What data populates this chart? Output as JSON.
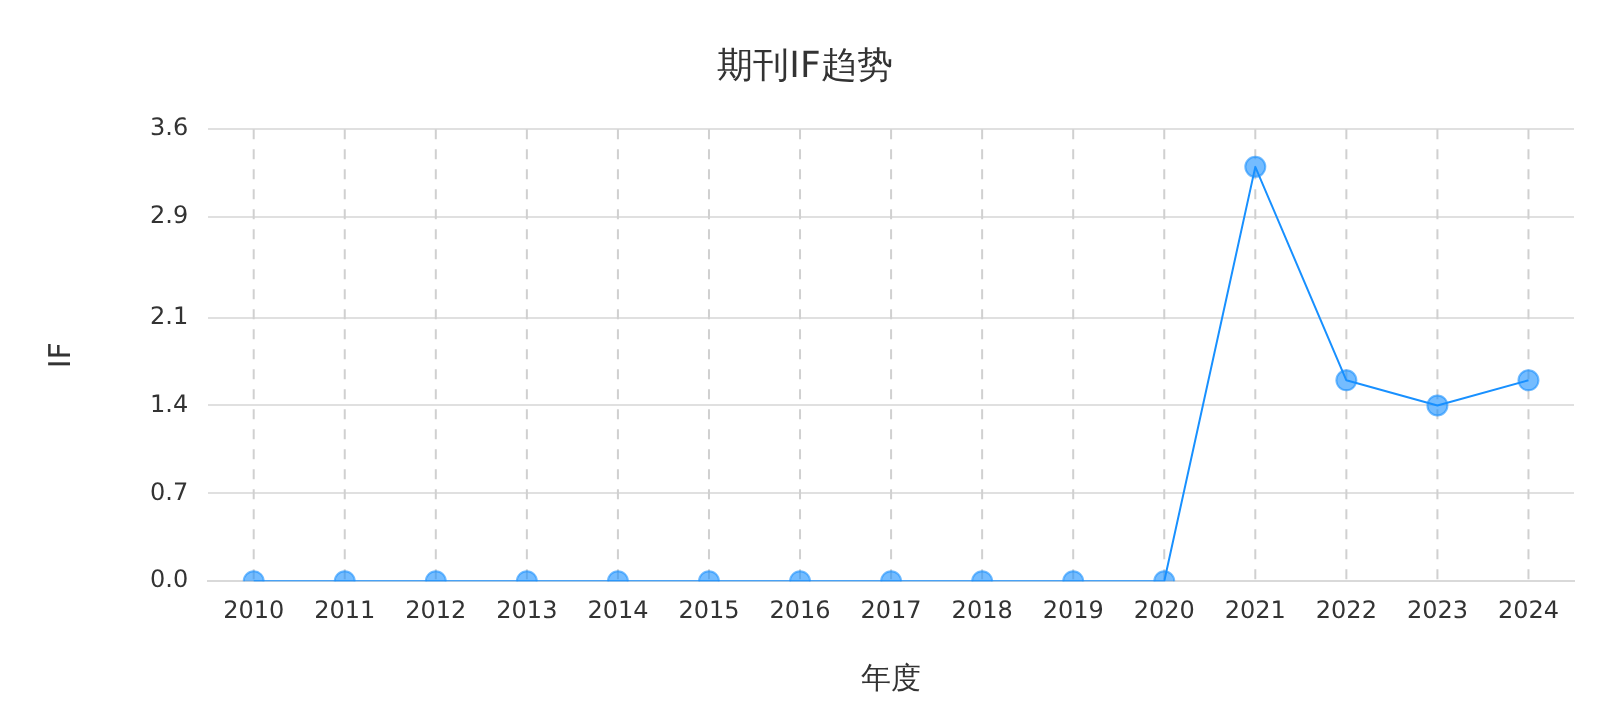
{
  "chart_data": {
    "type": "line",
    "title": "期刊IF趋势",
    "xlabel": "年度",
    "ylabel": "IF",
    "categories": [
      "2010",
      "2011",
      "2012",
      "2013",
      "2014",
      "2015",
      "2016",
      "2017",
      "2018",
      "2019",
      "2020",
      "2021",
      "2022",
      "2023",
      "2024"
    ],
    "series": [
      {
        "color": "#1890ff",
        "values": [
          0,
          0,
          0,
          0,
          0,
          0,
          0,
          0,
          0,
          0,
          0,
          3.3,
          1.6,
          1.4,
          1.6
        ]
      }
    ],
    "ylim": [
      0,
      3.6
    ],
    "yticks": [
      {
        "value": 0,
        "label": "0.0"
      },
      {
        "value": 0.7,
        "label": "0.7"
      },
      {
        "value": 1.4,
        "label": "1.4"
      },
      {
        "value": 2.1,
        "label": "2.1"
      },
      {
        "value": 2.9,
        "label": "2.9"
      },
      {
        "value": 3.6,
        "label": "3.6"
      }
    ],
    "grid": true,
    "legend": false,
    "marker": "circle",
    "line_style": "solid"
  }
}
